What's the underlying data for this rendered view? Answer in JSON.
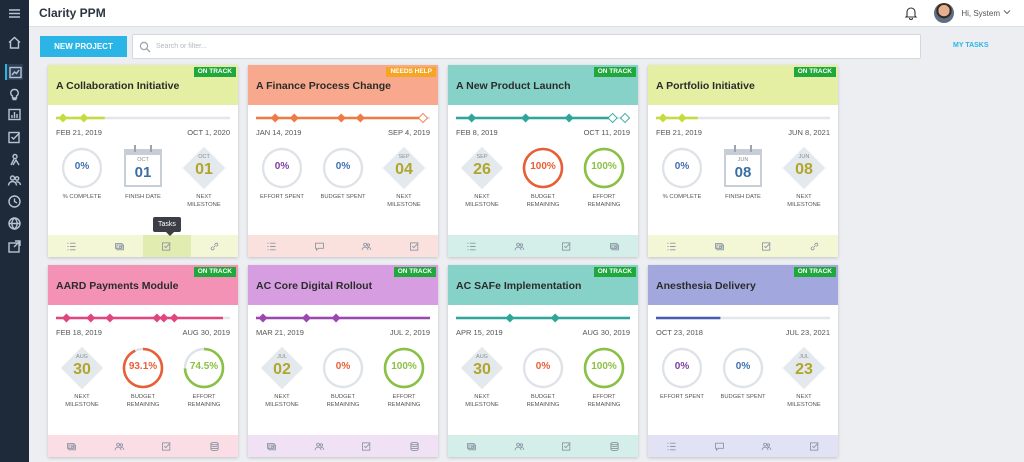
{
  "app": {
    "title": "Clarity PPM"
  },
  "header": {
    "greeting": "Hi, System"
  },
  "toolbar": {
    "new_project_label": "NEW PROJECT",
    "search_placeholder": "Search or filter...",
    "my_tasks_label": "MY TASKS"
  },
  "tooltip": {
    "text": "Tasks"
  },
  "sidebar": {
    "icons": [
      "menu-icon",
      "home-icon",
      "portfolio-icon",
      "ideas-icon",
      "reports-icon",
      "tasks-icon",
      "resources-icon",
      "team-icon",
      "timesheet-icon",
      "global-icon",
      "export-icon"
    ]
  },
  "colors": {
    "on_track": "#1fa83b",
    "needs_help": "#f5a623",
    "accent": "#2ab5e6"
  },
  "projects": [
    {
      "title": "A Collaboration Initiative",
      "status": "ON TRACK",
      "status_color": "#1fa83b",
      "header_color": "#e5efa3",
      "footer_color": "#f3f7d6",
      "timeline_color": "#c5dc3c",
      "start_date": "FEB 21, 2019",
      "end_date": "OCT 1, 2020",
      "timeline_progress": 0.28,
      "milestones": [
        0.04,
        0.16
      ],
      "future_milestones": [],
      "metrics": [
        {
          "kind": "ring",
          "value": "0%",
          "percent": 0,
          "color": "#3f6fb0",
          "label_lines": [
            "% COMPLETE"
          ]
        },
        {
          "kind": "calendar",
          "month": "OCT",
          "day": "01",
          "label_lines": [
            "FINISH DATE"
          ]
        },
        {
          "kind": "diamond",
          "month": "OCT",
          "day": "01",
          "color": "#b0a62b",
          "label_lines": [
            "NEXT",
            "MILESTONE"
          ]
        }
      ],
      "footer": [
        "list-icon",
        "budget-icon",
        "tasks-icon",
        "link-icon"
      ],
      "active_footer": 2
    },
    {
      "title": "A Finance Process Change",
      "status": "NEEDS HELP",
      "status_color": "#f5a623",
      "header_color": "#f8a88c",
      "footer_color": "#fbe1dd",
      "timeline_color": "#f07a45",
      "start_date": "JAN 14, 2019",
      "end_date": "SEP 4, 2019",
      "timeline_progress": 0.95,
      "milestones": [
        0.11,
        0.22,
        0.49,
        0.6
      ],
      "future_milestones": [
        0.96
      ],
      "metrics": [
        {
          "kind": "ring",
          "value": "0%",
          "percent": 0,
          "color": "#7b3fa0",
          "label_lines": [
            "EFFORT SPENT"
          ]
        },
        {
          "kind": "ring",
          "value": "0%",
          "percent": 0,
          "color": "#3f6fb0",
          "label_lines": [
            "BUDGET SPENT"
          ]
        },
        {
          "kind": "diamond",
          "month": "SEP",
          "day": "04",
          "color": "#b0a62b",
          "label_lines": [
            "NEXT",
            "MILESTONE"
          ]
        }
      ],
      "footer": [
        "list-icon",
        "chat-icon",
        "team-icon",
        "tasks-icon"
      ],
      "active_footer": -1
    },
    {
      "title": "A New Product Launch",
      "status": "ON TRACK",
      "status_color": "#1fa83b",
      "header_color": "#86d1c8",
      "footer_color": "#d4eeea",
      "timeline_color": "#2ea69a",
      "start_date": "FEB 8, 2019",
      "end_date": "OCT 11, 2019",
      "timeline_progress": 0.9,
      "milestones": [
        0.09,
        0.4,
        0.65
      ],
      "future_milestones": [
        0.9,
        0.98
      ],
      "metrics": [
        {
          "kind": "diamond",
          "month": "SEP",
          "day": "26",
          "color": "#b0a62b",
          "label_lines": [
            "NEXT",
            "MILESTONE"
          ]
        },
        {
          "kind": "ring",
          "value": "100%",
          "percent": 100,
          "color": "#e85e37",
          "label_lines": [
            "BUDGET",
            "REMAINING"
          ]
        },
        {
          "kind": "ring",
          "value": "100%",
          "percent": 100,
          "color": "#8ac044",
          "label_lines": [
            "EFFORT",
            "REMAINING"
          ]
        }
      ],
      "footer": [
        "list-icon",
        "team-icon",
        "tasks-icon",
        "budget-icon"
      ],
      "active_footer": -1
    },
    {
      "title": "A Portfolio Initiative",
      "status": "ON TRACK",
      "status_color": "#1fa83b",
      "header_color": "#e5efa3",
      "footer_color": "#f3f7d6",
      "timeline_color": "#c5dc3c",
      "start_date": "FEB 21, 2019",
      "end_date": "JUN 8, 2021",
      "timeline_progress": 0.24,
      "milestones": [
        0.04,
        0.15
      ],
      "future_milestones": [],
      "metrics": [
        {
          "kind": "ring",
          "value": "0%",
          "percent": 0,
          "color": "#3f6fb0",
          "label_lines": [
            "% COMPLETE"
          ]
        },
        {
          "kind": "calendar",
          "month": "JUN",
          "day": "08",
          "label_lines": [
            "FINISH DATE"
          ]
        },
        {
          "kind": "diamond",
          "month": "JUN",
          "day": "08",
          "color": "#b0a62b",
          "label_lines": [
            "NEXT",
            "MILESTONE"
          ]
        }
      ],
      "footer": [
        "list-icon",
        "budget-icon",
        "tasks-icon",
        "link-icon"
      ],
      "active_footer": -1
    },
    {
      "title": "AARD Payments Module",
      "status": "ON TRACK",
      "status_color": "#1fa83b",
      "header_color": "#f392b4",
      "footer_color": "#fbdde6",
      "timeline_color": "#e0457e",
      "start_date": "FEB 18, 2019",
      "end_date": "AUG 30, 2019",
      "timeline_progress": 0.96,
      "milestones": [
        0.06,
        0.2,
        0.31,
        0.58,
        0.62,
        0.68
      ],
      "future_milestones": [],
      "metrics": [
        {
          "kind": "diamond",
          "month": "AUG",
          "day": "30",
          "color": "#b0a62b",
          "label_lines": [
            "NEXT",
            "MILESTONE"
          ]
        },
        {
          "kind": "ring",
          "value": "93.1%",
          "percent": 93.1,
          "color": "#e85e37",
          "label_lines": [
            "BUDGET",
            "REMAINING"
          ]
        },
        {
          "kind": "ring",
          "value": "74.5%",
          "percent": 74.5,
          "color": "#8ac044",
          "label_lines": [
            "EFFORT",
            "REMAINING"
          ]
        }
      ],
      "footer": [
        "budget-icon",
        "team-icon",
        "tasks-icon",
        "money-icon"
      ],
      "active_footer": -1
    },
    {
      "title": "AC Core Digital Rollout",
      "status": "ON TRACK",
      "status_color": "#1fa83b",
      "header_color": "#d69ee0",
      "footer_color": "#f1e1f4",
      "timeline_color": "#9c46b2",
      "start_date": "MAR 21, 2019",
      "end_date": "JUL 2, 2019",
      "timeline_progress": 1.0,
      "milestones": [
        0.04,
        0.29,
        0.46
      ],
      "future_milestones": [],
      "metrics": [
        {
          "kind": "diamond",
          "month": "JUL",
          "day": "02",
          "color": "#b0a62b",
          "label_lines": [
            "NEXT",
            "MILESTONE"
          ]
        },
        {
          "kind": "ring",
          "value": "0%",
          "percent": 0,
          "color": "#e85e37",
          "label_lines": [
            "BUDGET",
            "REMAINING"
          ]
        },
        {
          "kind": "ring",
          "value": "100%",
          "percent": 100,
          "color": "#8ac044",
          "label_lines": [
            "EFFORT",
            "REMAINING"
          ]
        }
      ],
      "footer": [
        "budget-icon",
        "team-icon",
        "tasks-icon",
        "money-icon"
      ],
      "active_footer": -1
    },
    {
      "title": "AC SAFe Implementation",
      "status": "ON TRACK",
      "status_color": "#1fa83b",
      "header_color": "#86d1c8",
      "footer_color": "#d4eeea",
      "timeline_color": "#2ea69a",
      "start_date": "APR 15, 2019",
      "end_date": "AUG 30, 2019",
      "timeline_progress": 1.0,
      "milestones": [
        0.31,
        0.57
      ],
      "future_milestones": [],
      "metrics": [
        {
          "kind": "diamond",
          "month": "AUG",
          "day": "30",
          "color": "#b0a62b",
          "label_lines": [
            "NEXT",
            "MILESTONE"
          ]
        },
        {
          "kind": "ring",
          "value": "0%",
          "percent": 0,
          "color": "#e85e37",
          "label_lines": [
            "BUDGET",
            "REMAINING"
          ]
        },
        {
          "kind": "ring",
          "value": "100%",
          "percent": 100,
          "color": "#8ac044",
          "label_lines": [
            "EFFORT",
            "REMAINING"
          ]
        }
      ],
      "footer": [
        "budget-icon",
        "team-icon",
        "tasks-icon",
        "money-icon"
      ],
      "active_footer": -1
    },
    {
      "title": "Anesthesia Delivery",
      "status": "ON TRACK",
      "status_color": "#1fa83b",
      "header_color": "#a2a8de",
      "footer_color": "#e1e3f4",
      "timeline_color": "#4a5bb3",
      "start_date": "OCT 23, 2018",
      "end_date": "JUL 23, 2021",
      "timeline_progress": 0.37,
      "milestones": [],
      "future_milestones": [],
      "metrics": [
        {
          "kind": "ring",
          "value": "0%",
          "percent": 0,
          "color": "#7b3fa0",
          "label_lines": [
            "EFFORT SPENT"
          ]
        },
        {
          "kind": "ring",
          "value": "0%",
          "percent": 0,
          "color": "#3f6fb0",
          "label_lines": [
            "BUDGET SPENT"
          ]
        },
        {
          "kind": "diamond",
          "month": "JUL",
          "day": "23",
          "color": "#b0a62b",
          "label_lines": [
            "NEXT",
            "MILESTONE"
          ]
        }
      ],
      "footer": [
        "list-icon",
        "chat-icon",
        "team-icon",
        "tasks-icon"
      ],
      "active_footer": -1
    }
  ]
}
